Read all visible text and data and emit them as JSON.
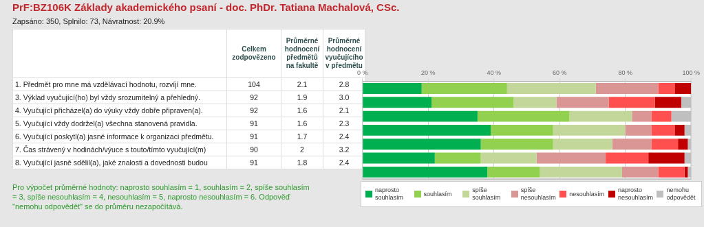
{
  "chart_data": [
    {
      "type": "other",
      "title": "PrF:BZ106K Základy akademického psaní - doc. PhDr. Tatiana Machalová, CSc.",
      "subtitle": "Zapsáno: 350, Splnilo: 73, Návratnost: 20.9%",
      "categories": [
        "1. Předmět pro mne má vzdělávací hodnotu, rozvíjí mne.",
        "3. Výklad vyučující(ho) byl vždy srozumitelný a přehledný.",
        "4. Vyučující přicházel(a) do výuky vždy dobře připraven(a).",
        "5. Vyučující vždy dodržel(a) všechna stanovená pravidla.",
        "6. Vyučující poskytl(a) jasné informace k organizaci předmětu.",
        "7. Čas strávený v hodinách/výuce s touto/tímto vyučující(m)",
        "8. Vyučující jasně sdělil(a), jaké znalosti a dovednosti budou"
      ],
      "series": [
        {
          "name": "Celkem zodpovězeno",
          "values": [
            104,
            92,
            92,
            91,
            91,
            90,
            91
          ]
        },
        {
          "name": "Průměrné hodnocení předmětů na fakultě",
          "values": [
            2.1,
            1.9,
            1.6,
            1.6,
            1.7,
            2,
            1.8
          ]
        },
        {
          "name": "Průměrné hodnocení vyučujícího v předmětu",
          "values": [
            2.8,
            3.0,
            2.1,
            2.3,
            2.4,
            3.2,
            2.4
          ],
          "value_labels": [
            "2.8",
            "3.0",
            "2.1",
            "2.3",
            "2.4",
            "3.2",
            "2.4"
          ]
        }
      ],
      "data_labels": true,
      "annotations": [
        "Pro výpočet průměrné hodnoty: naprosto souhlasím = 1, souhlasím = 2, spíše souhlasím = 3, spíše nesouhlasím = 4, nesouhlasím = 5, naprosto nesouhlasím = 6. Odpověď \"nemohu odpovědět\" se do průměru nezapočítává."
      ]
    },
    {
      "type": "bar",
      "orientation": "horizontal",
      "stacked": true,
      "categories": [
        null,
        null,
        null,
        null,
        null,
        null,
        null
      ],
      "series": [
        {
          "name": "naprosto souhlasím",
          "color": "#00b050",
          "values": [
            18,
            21,
            35,
            39,
            36,
            22,
            38
          ]
        },
        {
          "name": "souhlasím",
          "color": "#92d050",
          "values": [
            26,
            25,
            28,
            19,
            22,
            14,
            16
          ]
        },
        {
          "name": "spíše souhlasím",
          "color": "#c4d79b",
          "values": [
            27,
            13,
            19,
            22,
            18,
            17,
            25
          ]
        },
        {
          "name": "spíše nesouhlasím",
          "color": "#da9694",
          "values": [
            19,
            16,
            6,
            8,
            12,
            21,
            11
          ]
        },
        {
          "name": "nesouhlasím",
          "color": "#ff4f4f",
          "values": [
            5,
            14,
            6,
            7,
            8,
            13,
            8
          ]
        },
        {
          "name": "naprosto nesouhlasím",
          "color": "#c00000",
          "values": [
            5,
            8,
            0,
            3,
            3,
            11,
            1
          ]
        },
        {
          "name": "nemohu odpovědět",
          "color": "#bfbfbf",
          "values": [
            0,
            3,
            6,
            2,
            1,
            2,
            1
          ]
        }
      ],
      "xlim": [
        0,
        100
      ],
      "xticks": [
        {
          "value": 0,
          "label": "0 %"
        },
        {
          "value": 20,
          "label": "20 %"
        },
        {
          "value": 40,
          "label": "40 %"
        },
        {
          "value": 60,
          "label": "60 %"
        },
        {
          "value": 80,
          "label": "80 %"
        },
        {
          "value": 100,
          "label": "100 %"
        }
      ],
      "grid": "x",
      "legend": "bottom",
      "tick_labels": "x"
    }
  ]
}
